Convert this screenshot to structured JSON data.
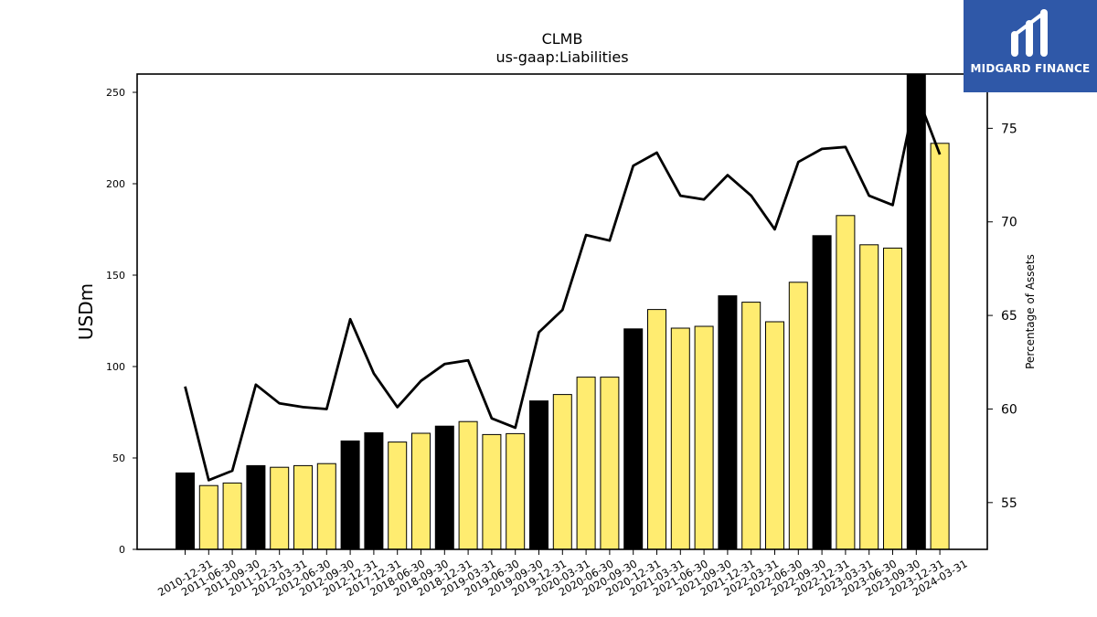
{
  "chart_data": {
    "type": "bar",
    "title": "CLMB",
    "subtitle": "us-gaap:Liabilities",
    "ylabel": "USDm",
    "y2label": "Percentage of Assets",
    "ylim": [
      0,
      260
    ],
    "y2lim": [
      52.5,
      77.9
    ],
    "yticks": [
      0,
      50,
      100,
      150,
      200,
      250
    ],
    "y2ticks": [
      55,
      60,
      65,
      70,
      75
    ],
    "categories": [
      "2010-12-31",
      "2011-06-30",
      "2011-09-30",
      "2011-12-31",
      "2012-03-31",
      "2012-06-30",
      "2012-09-30",
      "2012-12-31",
      "2017-12-31",
      "2018-06-30",
      "2018-09-30",
      "2018-12-31",
      "2019-03-31",
      "2019-06-30",
      "2019-09-30",
      "2019-12-31",
      "2020-03-31",
      "2020-06-30",
      "2020-09-30",
      "2020-12-31",
      "2021-03-31",
      "2021-06-30",
      "2021-09-30",
      "2021-12-31",
      "2022-03-31",
      "2022-06-30",
      "2022-09-30",
      "2022-12-31",
      "2023-03-31",
      "2023-06-30",
      "2023-09-30",
      "2023-12-31",
      "2024-03-31"
    ],
    "series": [
      {
        "type": "bar",
        "values": [
          41.8,
          34.9,
          36.3,
          45.8,
          44.9,
          45.8,
          46.9,
          59.3,
          63.8,
          58.7,
          63.5,
          67.4,
          69.9,
          62.8,
          63.3,
          81.2,
          84.7,
          94.2,
          94.2,
          120.6,
          131.2,
          121.0,
          122.0,
          138.7,
          135.2,
          124.5,
          146.1,
          171.6,
          182.6,
          166.6,
          164.8,
          259.8,
          222.1
        ],
        "highlight": [
          true,
          false,
          false,
          true,
          false,
          false,
          false,
          true,
          true,
          false,
          false,
          true,
          false,
          false,
          false,
          true,
          false,
          false,
          false,
          true,
          false,
          false,
          false,
          true,
          false,
          false,
          false,
          true,
          false,
          false,
          false,
          true,
          false
        ]
      },
      {
        "type": "line",
        "axis": "y2",
        "values": [
          61.2,
          56.2,
          56.7,
          61.3,
          60.3,
          60.1,
          60.0,
          64.8,
          61.9,
          60.1,
          61.5,
          62.4,
          62.6,
          59.5,
          59.0,
          64.1,
          65.3,
          69.3,
          69.0,
          73.0,
          73.7,
          71.4,
          71.2,
          72.5,
          71.4,
          69.6,
          73.2,
          73.9,
          74.0,
          71.4,
          70.9,
          76.9,
          73.6
        ]
      }
    ],
    "colors": {
      "highlight_bar": "#000000",
      "bar": "#ffec70",
      "bar_edge": "#000000",
      "line": "#000000",
      "logo_bg": "#2f58a8"
    }
  },
  "logo": {
    "text": "MIDGARD FINANCE"
  }
}
